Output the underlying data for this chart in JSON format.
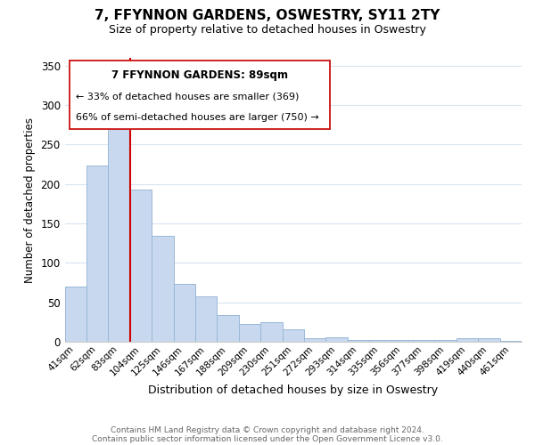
{
  "title": "7, FFYNNON GARDENS, OSWESTRY, SY11 2TY",
  "subtitle": "Size of property relative to detached houses in Oswestry",
  "xlabel": "Distribution of detached houses by size in Oswestry",
  "ylabel": "Number of detached properties",
  "bar_color": "#c8d8ee",
  "bar_edge_color": "#9ab8d8",
  "categories": [
    "41sqm",
    "62sqm",
    "83sqm",
    "104sqm",
    "125sqm",
    "146sqm",
    "167sqm",
    "188sqm",
    "209sqm",
    "230sqm",
    "251sqm",
    "272sqm",
    "293sqm",
    "314sqm",
    "335sqm",
    "356sqm",
    "377sqm",
    "398sqm",
    "419sqm",
    "440sqm",
    "461sqm"
  ],
  "values": [
    70,
    223,
    280,
    193,
    134,
    73,
    58,
    34,
    23,
    25,
    16,
    4,
    6,
    2,
    2,
    2,
    2,
    2,
    5,
    5,
    1
  ],
  "ylim": [
    0,
    360
  ],
  "yticks": [
    0,
    50,
    100,
    150,
    200,
    250,
    300,
    350
  ],
  "marker_bar_index": 2,
  "marker_line_color": "#cc0000",
  "annotation_title": "7 FFYNNON GARDENS: 89sqm",
  "annotation_line1": "← 33% of detached houses are smaller (369)",
  "annotation_line2": "66% of semi-detached houses are larger (750) →",
  "footer_line1": "Contains HM Land Registry data © Crown copyright and database right 2024.",
  "footer_line2": "Contains public sector information licensed under the Open Government Licence v3.0.",
  "background_color": "#ffffff",
  "grid_color": "#d8e4f0"
}
